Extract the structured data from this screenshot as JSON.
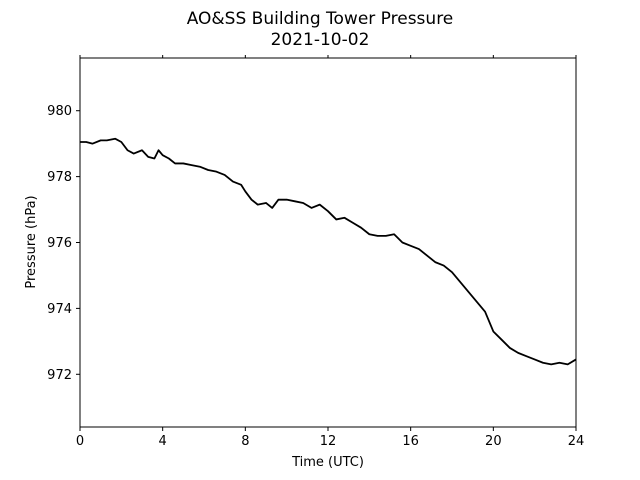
{
  "chart_data": {
    "type": "line",
    "title": "AO&SS Building Tower Pressure",
    "subtitle": "2021-10-02",
    "xlabel": "Time (UTC)",
    "ylabel": "Pressure (hPa)",
    "xlim": [
      0,
      24
    ],
    "ylim": [
      970.4,
      981.6
    ],
    "xticks": [
      0,
      4,
      8,
      12,
      16,
      20,
      24
    ],
    "yticks": [
      972,
      974,
      976,
      978,
      980
    ],
    "grid": false,
    "line_color": "#000000",
    "series": [
      {
        "x": [
          0,
          0.3,
          0.6,
          1.0,
          1.3,
          1.7,
          2.0,
          2.3,
          2.6,
          3.0,
          3.3,
          3.6,
          3.8,
          4.0,
          4.3,
          4.6,
          5.0,
          5.4,
          5.8,
          6.2,
          6.6,
          7.0,
          7.4,
          7.8,
          8.0,
          8.3,
          8.6,
          9.0,
          9.3,
          9.6,
          10.0,
          10.4,
          10.8,
          11.2,
          11.6,
          12.0,
          12.4,
          12.8,
          13.2,
          13.6,
          14.0,
          14.4,
          14.8,
          15.2,
          15.6,
          16.0,
          16.4,
          16.8,
          17.2,
          17.6,
          18.0,
          18.4,
          18.8,
          19.2,
          19.6,
          20.0,
          20.4,
          20.8,
          21.2,
          21.6,
          22.0,
          22.4,
          22.8,
          23.2,
          23.6,
          24.0
        ],
        "values": [
          979.05,
          979.05,
          979.0,
          979.1,
          979.1,
          979.15,
          979.05,
          978.8,
          978.7,
          978.8,
          978.6,
          978.55,
          978.8,
          978.65,
          978.55,
          978.4,
          978.4,
          978.35,
          978.3,
          978.2,
          978.15,
          978.05,
          977.85,
          977.75,
          977.55,
          977.3,
          977.15,
          977.2,
          977.05,
          977.3,
          977.3,
          977.25,
          977.2,
          977.05,
          977.15,
          976.95,
          976.7,
          976.75,
          976.6,
          976.45,
          976.25,
          976.2,
          976.2,
          976.25,
          976.0,
          975.9,
          975.8,
          975.6,
          975.4,
          975.3,
          975.1,
          974.8,
          974.5,
          974.2,
          973.9,
          973.3,
          973.05,
          972.8,
          972.65,
          972.55,
          972.45,
          972.35,
          972.3,
          972.35,
          972.3,
          972.45
        ]
      }
    ]
  }
}
